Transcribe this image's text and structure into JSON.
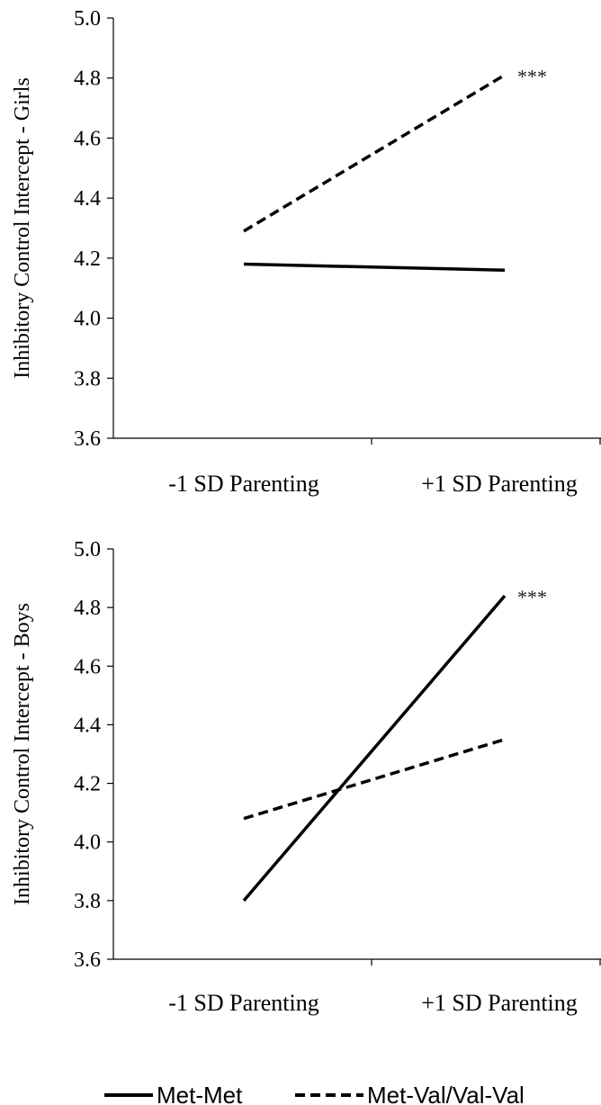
{
  "chart_data": [
    {
      "type": "line",
      "categories": [
        "-1 SD Parenting",
        "+1 SD Parenting"
      ],
      "ylabel": "Inhibitory Control Intercept - Girls",
      "ylim": [
        3.6,
        5.0
      ],
      "yticks": [
        "3.6",
        "3.8",
        "4.0",
        "4.2",
        "4.4",
        "4.6",
        "4.8",
        "5.0"
      ],
      "series": [
        {
          "name": "Met-Met",
          "values": [
            4.18,
            4.16
          ],
          "style": "solid",
          "color": "#000000"
        },
        {
          "name": "Met-Val/Val-Val",
          "values": [
            4.29,
            4.81
          ],
          "style": "dashed",
          "color": "#000000"
        }
      ],
      "annotation": {
        "text": "***",
        "series": "Met-Val/Val-Val"
      },
      "grid": false
    },
    {
      "type": "line",
      "categories": [
        "-1 SD Parenting",
        "+1 SD Parenting"
      ],
      "ylabel": "Inhibitory Control Intercept - Boys",
      "ylim": [
        3.6,
        5.0
      ],
      "yticks": [
        "3.6",
        "3.8",
        "4.0",
        "4.2",
        "4.4",
        "4.6",
        "4.8",
        "5.0"
      ],
      "series": [
        {
          "name": "Met-Met",
          "values": [
            3.8,
            4.84
          ],
          "style": "solid",
          "color": "#000000"
        },
        {
          "name": "Met-Val/Val-Val",
          "values": [
            4.08,
            4.35
          ],
          "style": "dashed",
          "color": "#000000"
        }
      ],
      "annotation": {
        "text": "***",
        "series": "Met-Met"
      },
      "grid": false
    }
  ],
  "legend": {
    "placement": "bottom",
    "items": [
      {
        "label": "Met-Met",
        "style": "solid"
      },
      {
        "label": "Met-Val/Val-Val",
        "style": "dashed"
      }
    ]
  }
}
